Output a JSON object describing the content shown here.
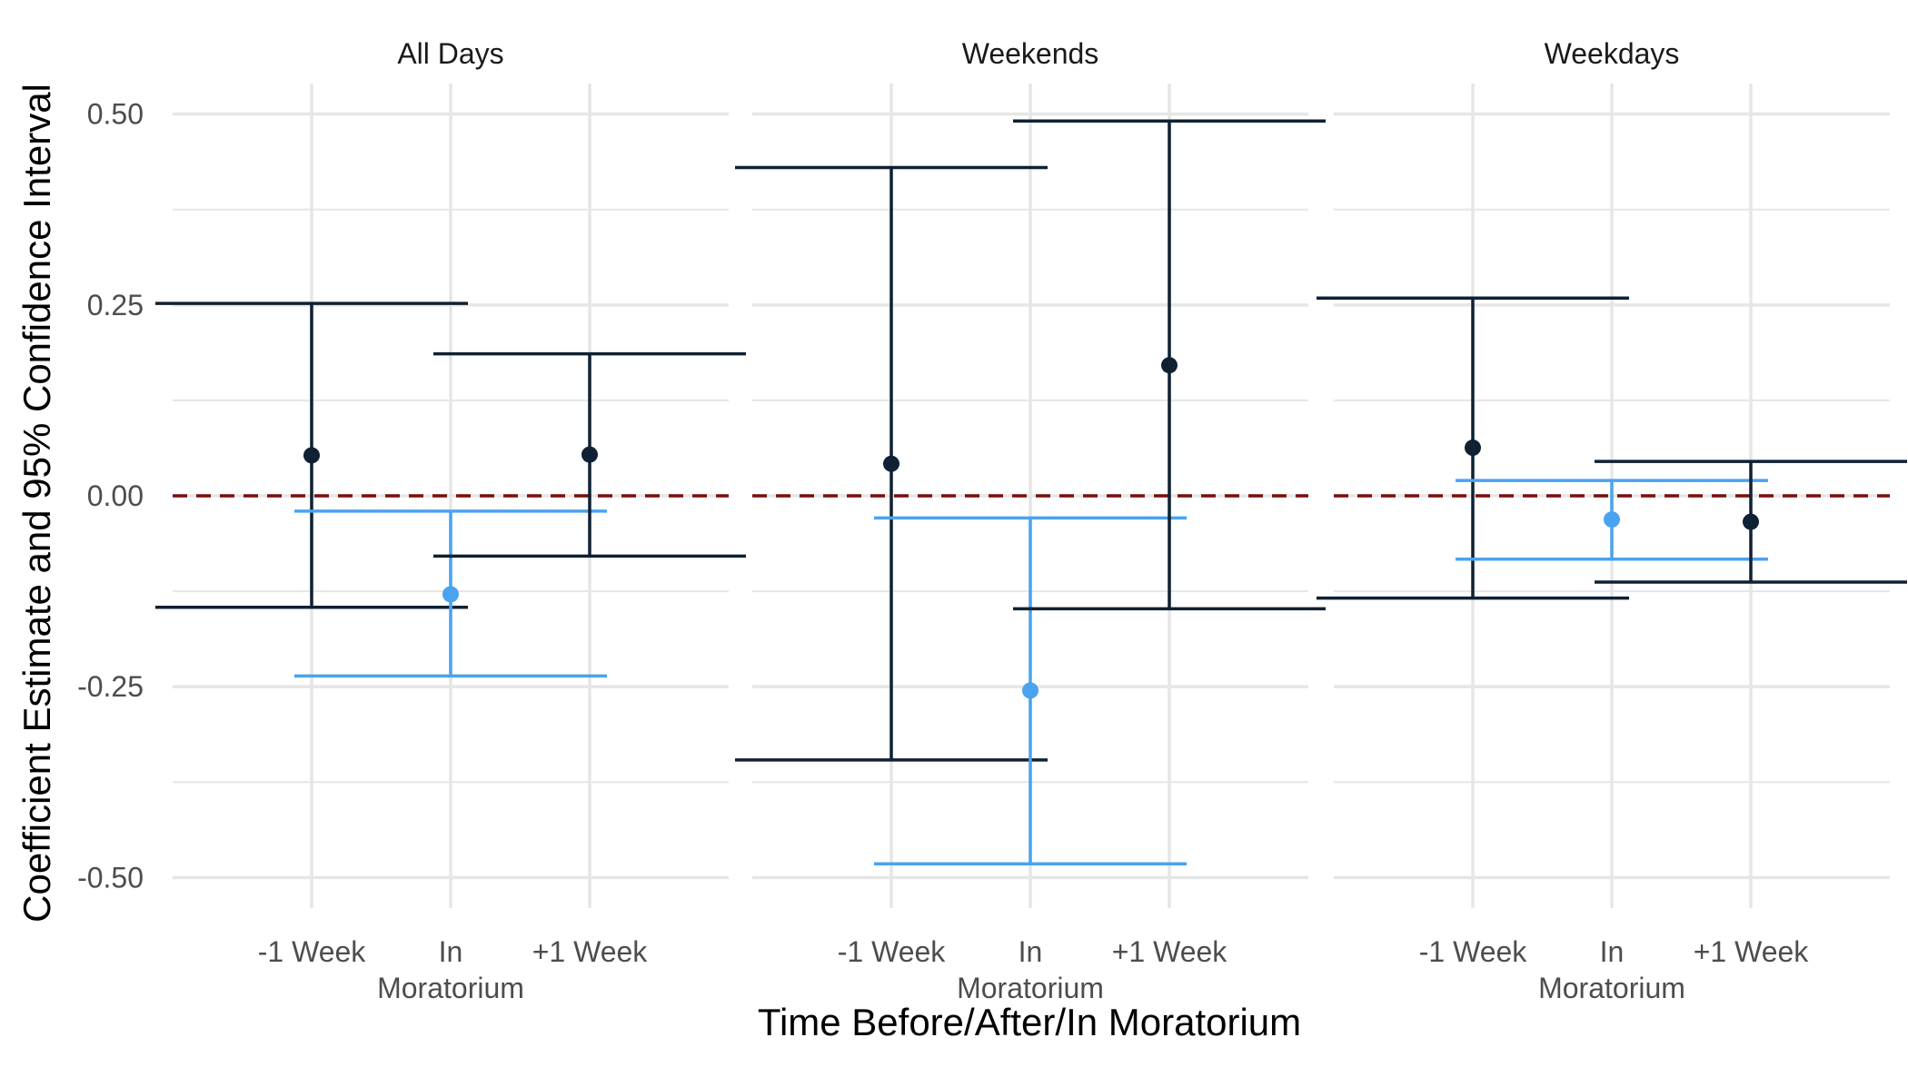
{
  "chart_data": {
    "type": "errorbar",
    "xlabel": "Time Before/After/In Moratorium",
    "ylabel": "Coefficient Estimate and 95% Confidence Interval",
    "ylim": [
      -0.5,
      0.5
    ],
    "yticks": [
      "0.50",
      "0.25",
      "0.00",
      "-0.25",
      "-0.50"
    ],
    "ytick_values": [
      0.5,
      0.25,
      0.0,
      -0.25,
      -0.5
    ],
    "categories": [
      {
        "line1": "-1 Week",
        "line2": ""
      },
      {
        "line1": "In",
        "line2": "Moratorium"
      },
      {
        "line1": "+1 Week",
        "line2": ""
      }
    ],
    "reference_line": {
      "y": 0,
      "style": "dashed",
      "color": "#7a0d0d"
    },
    "colors": {
      "default": "#0f2133",
      "highlight": "#4aa3ef",
      "grid": "#e6e6e6"
    },
    "grid": true,
    "panels": [
      {
        "title": "All Days",
        "points": [
          {
            "estimate": 0.053,
            "lower": -0.146,
            "upper": 0.252,
            "highlight": false
          },
          {
            "estimate": -0.129,
            "lower": -0.236,
            "upper": -0.02,
            "highlight": true
          },
          {
            "estimate": 0.054,
            "lower": -0.079,
            "upper": 0.186,
            "highlight": false
          }
        ]
      },
      {
        "title": "Weekends",
        "points": [
          {
            "estimate": 0.042,
            "lower": -0.346,
            "upper": 0.43,
            "highlight": false
          },
          {
            "estimate": -0.255,
            "lower": -0.482,
            "upper": -0.029,
            "highlight": true
          },
          {
            "estimate": 0.171,
            "lower": -0.148,
            "upper": 0.491,
            "highlight": false
          }
        ]
      },
      {
        "title": "Weekdays",
        "points": [
          {
            "estimate": 0.063,
            "lower": -0.134,
            "upper": 0.259,
            "highlight": false
          },
          {
            "estimate": -0.031,
            "lower": -0.083,
            "upper": 0.02,
            "highlight": true
          },
          {
            "estimate": -0.034,
            "lower": -0.113,
            "upper": 0.045,
            "highlight": false
          }
        ]
      }
    ]
  }
}
